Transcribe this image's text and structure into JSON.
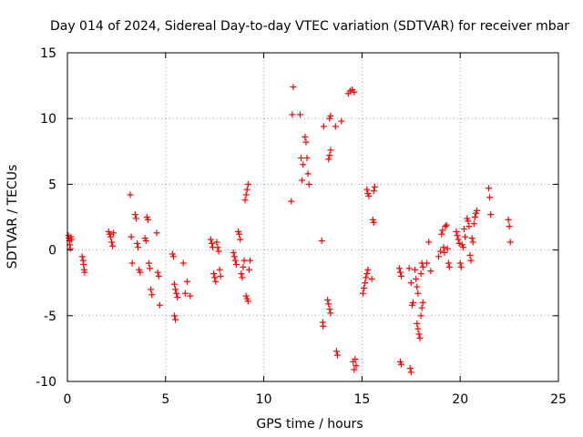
{
  "chart_data": {
    "type": "scatter",
    "title": "Day 014 of 2024, Sidereal Day-to-day VTEC variation (SDTVAR) for receiver mbar",
    "xlabel": "GPS time / hours",
    "ylabel": "SDTVAR / TECUs",
    "xlim": [
      0,
      25
    ],
    "ylim": [
      -10,
      15
    ],
    "xticks": [
      0,
      5,
      10,
      15,
      20,
      25
    ],
    "yticks": [
      -10,
      -5,
      0,
      5,
      10,
      15
    ],
    "xtick_labels": [
      "0",
      "5",
      "10",
      "15",
      "20",
      "25"
    ],
    "ytick_labels": [
      "-10",
      "-5",
      "0",
      "5",
      "10",
      "15"
    ],
    "grid": true,
    "marker": "+",
    "color": "#ff0000",
    "series": [
      {
        "name": "SDTVAR",
        "points": [
          [
            0.05,
            1.1
          ],
          [
            0.08,
            0.9
          ],
          [
            0.1,
            0.7
          ],
          [
            0.12,
            0.4
          ],
          [
            0.15,
            0.1
          ],
          [
            0.18,
            1.0
          ],
          [
            0.2,
            0.8
          ],
          [
            0.75,
            -0.5
          ],
          [
            0.8,
            -0.8
          ],
          [
            0.82,
            -1.1
          ],
          [
            0.85,
            -1.5
          ],
          [
            0.88,
            -1.7
          ],
          [
            2.1,
            1.4
          ],
          [
            2.15,
            1.2
          ],
          [
            2.2,
            1.0
          ],
          [
            2.25,
            0.6
          ],
          [
            2.3,
            0.3
          ],
          [
            2.35,
            1.3
          ],
          [
            3.2,
            4.2
          ],
          [
            3.25,
            1.0
          ],
          [
            3.3,
            -1.0
          ],
          [
            3.45,
            2.7
          ],
          [
            3.5,
            2.4
          ],
          [
            3.55,
            0.5
          ],
          [
            3.6,
            0.2
          ],
          [
            3.65,
            -1.5
          ],
          [
            3.7,
            -1.7
          ],
          [
            3.95,
            0.9
          ],
          [
            4.0,
            0.7
          ],
          [
            4.05,
            2.5
          ],
          [
            4.1,
            2.3
          ],
          [
            4.15,
            -1.0
          ],
          [
            4.2,
            -1.4
          ],
          [
            4.25,
            -3.0
          ],
          [
            4.3,
            -3.4
          ],
          [
            4.55,
            1.3
          ],
          [
            4.6,
            -1.7
          ],
          [
            4.65,
            -2.0
          ],
          [
            4.7,
            -4.2
          ],
          [
            5.35,
            -0.3
          ],
          [
            5.4,
            -0.5
          ],
          [
            5.45,
            -2.6
          ],
          [
            5.5,
            -3.0
          ],
          [
            5.55,
            -3.3
          ],
          [
            5.6,
            -3.6
          ],
          [
            5.45,
            -5.0
          ],
          [
            5.5,
            -5.3
          ],
          [
            5.9,
            -1.0
          ],
          [
            6.0,
            -3.3
          ],
          [
            6.1,
            -2.4
          ],
          [
            6.25,
            -3.5
          ],
          [
            7.3,
            0.8
          ],
          [
            7.35,
            0.5
          ],
          [
            7.4,
            0.2
          ],
          [
            7.45,
            -1.8
          ],
          [
            7.5,
            -2.1
          ],
          [
            7.55,
            -2.4
          ],
          [
            7.6,
            0.6
          ],
          [
            7.65,
            0.2
          ],
          [
            7.7,
            -0.1
          ],
          [
            7.75,
            -1.5
          ],
          [
            7.8,
            -2.0
          ],
          [
            8.45,
            -0.2
          ],
          [
            8.5,
            -0.5
          ],
          [
            8.55,
            -0.8
          ],
          [
            8.6,
            -1.1
          ],
          [
            8.7,
            1.4
          ],
          [
            8.75,
            1.2
          ],
          [
            8.8,
            0.8
          ],
          [
            8.85,
            -1.8
          ],
          [
            8.9,
            -2.1
          ],
          [
            8.95,
            -1.3
          ],
          [
            9.0,
            -0.8
          ],
          [
            9.1,
            -3.5
          ],
          [
            9.15,
            -3.7
          ],
          [
            9.2,
            -3.9
          ],
          [
            9.25,
            -1.5
          ],
          [
            9.3,
            -0.8
          ],
          [
            9.05,
            3.8
          ],
          [
            9.1,
            4.2
          ],
          [
            9.15,
            4.6
          ],
          [
            9.2,
            5.0
          ],
          [
            11.4,
            3.7
          ],
          [
            11.45,
            10.3
          ],
          [
            11.5,
            12.4
          ],
          [
            11.85,
            10.3
          ],
          [
            11.9,
            7.0
          ],
          [
            11.95,
            5.3
          ],
          [
            12.0,
            6.5
          ],
          [
            12.1,
            8.6
          ],
          [
            12.15,
            8.2
          ],
          [
            12.2,
            7.0
          ],
          [
            12.25,
            5.8
          ],
          [
            12.3,
            5.0
          ],
          [
            12.95,
            0.7
          ],
          [
            13.0,
            -5.5
          ],
          [
            13.02,
            -5.8
          ],
          [
            13.05,
            9.4
          ],
          [
            13.25,
            -3.8
          ],
          [
            13.3,
            -4.1
          ],
          [
            13.35,
            -4.5
          ],
          [
            13.4,
            -4.8
          ],
          [
            13.3,
            6.9
          ],
          [
            13.35,
            7.2
          ],
          [
            13.4,
            7.6
          ],
          [
            13.35,
            10.0
          ],
          [
            13.4,
            10.2
          ],
          [
            13.65,
            9.4
          ],
          [
            13.7,
            -7.7
          ],
          [
            13.75,
            -8.0
          ],
          [
            13.95,
            9.8
          ],
          [
            14.3,
            11.9
          ],
          [
            14.4,
            12.1
          ],
          [
            14.5,
            12.2
          ],
          [
            14.6,
            12.0
          ],
          [
            14.65,
            -8.3
          ],
          [
            14.7,
            -8.8
          ],
          [
            14.6,
            -9.1
          ],
          [
            14.55,
            -8.5
          ],
          [
            15.05,
            -3.3
          ],
          [
            15.1,
            -2.9
          ],
          [
            15.15,
            -2.5
          ],
          [
            15.2,
            -2.1
          ],
          [
            15.25,
            -1.8
          ],
          [
            15.3,
            -1.5
          ],
          [
            15.25,
            4.6
          ],
          [
            15.3,
            4.3
          ],
          [
            15.35,
            4.1
          ],
          [
            15.5,
            -2.2
          ],
          [
            15.55,
            2.3
          ],
          [
            15.6,
            2.1
          ],
          [
            15.65,
            4.8
          ],
          [
            15.6,
            4.5
          ],
          [
            16.9,
            -1.4
          ],
          [
            16.95,
            -1.7
          ],
          [
            17.0,
            -2.0
          ],
          [
            16.95,
            -8.5
          ],
          [
            17.0,
            -8.7
          ],
          [
            17.4,
            -1.4
          ],
          [
            17.5,
            -2.5
          ],
          [
            17.55,
            -4.2
          ],
          [
            17.6,
            -4.0
          ],
          [
            17.45,
            -9.0
          ],
          [
            17.5,
            -9.3
          ],
          [
            17.7,
            -1.5
          ],
          [
            17.75,
            -2.2
          ],
          [
            17.8,
            -2.8
          ],
          [
            17.85,
            -3.3
          ],
          [
            17.8,
            -5.6
          ],
          [
            17.85,
            -6.0
          ],
          [
            17.9,
            -6.4
          ],
          [
            17.95,
            -6.7
          ],
          [
            18.0,
            -5.0
          ],
          [
            18.05,
            -4.4
          ],
          [
            18.1,
            -4.0
          ],
          [
            18.05,
            -1.0
          ],
          [
            18.1,
            -1.3
          ],
          [
            18.0,
            -1.8
          ],
          [
            18.3,
            -1.0
          ],
          [
            18.4,
            0.6
          ],
          [
            18.5,
            -1.6
          ],
          [
            18.9,
            -0.5
          ],
          [
            19.0,
            -0.1
          ],
          [
            19.05,
            1.2
          ],
          [
            19.1,
            1.5
          ],
          [
            19.15,
            0.2
          ],
          [
            19.2,
            -0.2
          ],
          [
            19.25,
            1.8
          ],
          [
            19.3,
            1.9
          ],
          [
            19.35,
            0.1
          ],
          [
            19.4,
            -1.0
          ],
          [
            19.45,
            -1.3
          ],
          [
            19.8,
            1.4
          ],
          [
            19.85,
            1.1
          ],
          [
            19.9,
            0.8
          ],
          [
            19.95,
            0.5
          ],
          [
            20.0,
            -1.0
          ],
          [
            20.05,
            -1.3
          ],
          [
            20.1,
            0.4
          ],
          [
            20.15,
            0.2
          ],
          [
            20.2,
            1.6
          ],
          [
            20.25,
            1.0
          ],
          [
            20.35,
            2.4
          ],
          [
            20.4,
            2.2
          ],
          [
            20.45,
            1.8
          ],
          [
            20.5,
            -0.4
          ],
          [
            20.55,
            -0.8
          ],
          [
            20.6,
            0.9
          ],
          [
            20.65,
            0.6
          ],
          [
            20.7,
            2.0
          ],
          [
            20.75,
            2.5
          ],
          [
            20.8,
            2.8
          ],
          [
            20.85,
            3.0
          ],
          [
            21.45,
            4.7
          ],
          [
            21.5,
            4.0
          ],
          [
            21.55,
            2.7
          ],
          [
            22.45,
            2.3
          ],
          [
            22.5,
            1.8
          ],
          [
            22.55,
            0.6
          ]
        ]
      }
    ]
  }
}
